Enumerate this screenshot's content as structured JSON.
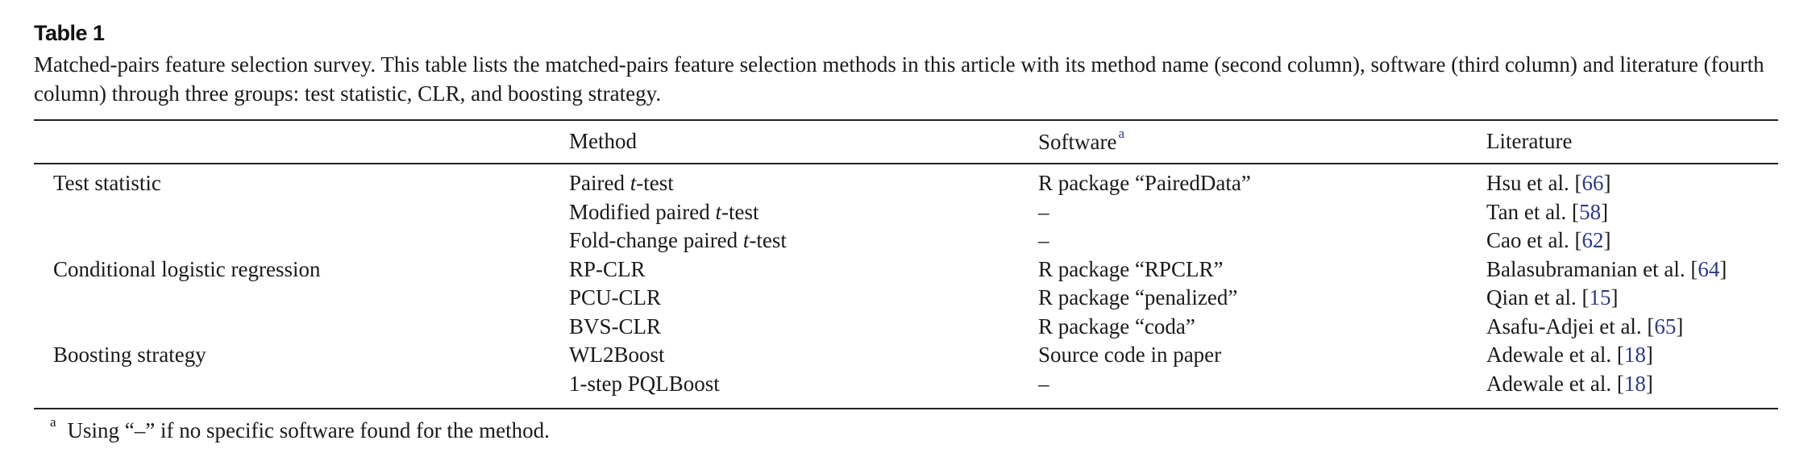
{
  "table": {
    "label": "Table 1",
    "caption": "Matched-pairs feature selection survey. This table lists the matched-pairs feature selection methods in this article with its method name (second column), software (third column) and literature (fourth column) through three groups: test statistic, CLR, and boosting strategy.",
    "headers": {
      "group": "",
      "method": "Method",
      "software": "Software",
      "software_note_mark": "a",
      "literature": "Literature"
    },
    "rows": [
      {
        "group": "Test statistic",
        "method_pre": "Paired ",
        "method_ital": "t",
        "method_post": "-test",
        "software": "R package “PairedData”",
        "lit_text": "Hsu et al. [",
        "lit_ref": "66",
        "lit_close": "]"
      },
      {
        "group": "",
        "method_pre": "Modified paired ",
        "method_ital": "t",
        "method_post": "-test",
        "software": "–",
        "lit_text": "Tan et al. [",
        "lit_ref": "58",
        "lit_close": "]"
      },
      {
        "group": "",
        "method_pre": "Fold-change paired ",
        "method_ital": "t",
        "method_post": "-test",
        "software": "–",
        "lit_text": "Cao et al. [",
        "lit_ref": "62",
        "lit_close": "]"
      },
      {
        "group": "Conditional logistic regression",
        "method_pre": "RP-CLR",
        "method_ital": "",
        "method_post": "",
        "software": "R package “RPCLR”",
        "lit_text": "Balasubramanian et al. [",
        "lit_ref": "64",
        "lit_close": "]"
      },
      {
        "group": "",
        "method_pre": "PCU-CLR",
        "method_ital": "",
        "method_post": "",
        "software": "R package “penalized”",
        "lit_text": "Qian et al. [",
        "lit_ref": "15",
        "lit_close": "]"
      },
      {
        "group": "",
        "method_pre": "BVS-CLR",
        "method_ital": "",
        "method_post": "",
        "software": "R package “coda”",
        "lit_text": "Asafu-Adjei et al. [",
        "lit_ref": "65",
        "lit_close": "]"
      },
      {
        "group": "Boosting strategy",
        "method_pre": "WL2Boost",
        "method_ital": "",
        "method_post": "",
        "software": "Source code in paper",
        "lit_text": "Adewale et al. [",
        "lit_ref": "18",
        "lit_close": "]"
      },
      {
        "group": "",
        "method_pre": "1-step PQLBoost",
        "method_ital": "",
        "method_post": "",
        "software": "–",
        "lit_text": "Adewale et al. [",
        "lit_ref": "18",
        "lit_close": "]"
      }
    ],
    "footnote": {
      "mark": "a",
      "text": "Using “–” if no specific software found for the method."
    },
    "colors": {
      "link": "#2b3a87",
      "text": "#1a1a1a"
    }
  }
}
